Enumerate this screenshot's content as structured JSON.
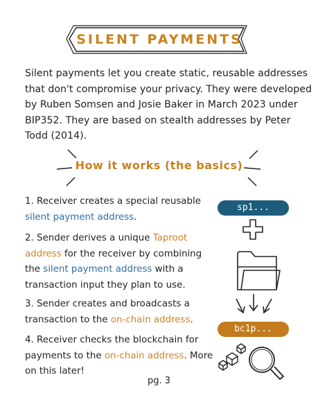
{
  "title": "SILENT PAYMENTS",
  "intro": "Silent payments let you create static, reusable addresses that don't compromise your privacy. They were developed by Ruben Somsen and Josie Baker in March 2023 under BIP352. They are based on stealth addresses by Peter Todd (2014).",
  "section_heading": "How it works (the basics)",
  "steps": [
    [
      {
        "text": "1. Receiver creates a special reusable "
      },
      {
        "text": "silent payment address",
        "color": "blue"
      },
      {
        "text": "."
      }
    ],
    [
      {
        "text": "2. Sender derives a unique "
      },
      {
        "text": "Taproot address",
        "color": "orange"
      },
      {
        "text": " for the receiver by combining the "
      },
      {
        "text": "silent payment address",
        "color": "blue"
      },
      {
        "text": " with a transaction input they plan to use."
      }
    ],
    [
      {
        "text": "3. Sender creates and broadcasts a transaction to the "
      },
      {
        "text": "on-chain address",
        "color": "orange"
      },
      {
        "text": "."
      }
    ],
    [
      {
        "text": "4. Receiver checks the blockchain for payments to the "
      },
      {
        "text": "on-chain address",
        "color": "orange"
      },
      {
        "text": ". More on this later!"
      }
    ]
  ],
  "pills": {
    "silent_address": "sp1...",
    "onchain_address": "bc1p..."
  },
  "page_number": "pg. 3",
  "colors": {
    "accent_orange": "#c9821e",
    "link_blue": "#2e6da4",
    "pill_blue": "#1d5d7b",
    "pill_orange": "#c47b1d"
  },
  "icons": [
    "plus-icon",
    "folder-icon",
    "arrows-down-icon",
    "blocks-icon",
    "magnifier-icon"
  ]
}
